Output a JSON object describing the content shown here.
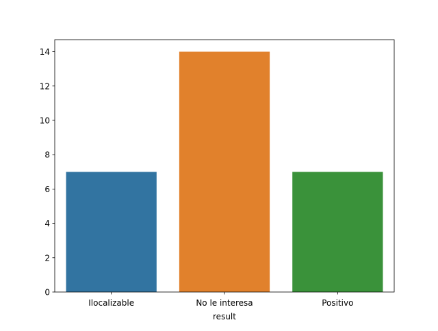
{
  "chart_data": {
    "type": "bar",
    "categories": [
      "Ilocalizable",
      "No le interesa",
      "Positivo"
    ],
    "values": [
      7,
      14,
      7
    ],
    "colors": [
      "#3274a1",
      "#e1812c",
      "#3a923a"
    ],
    "title": "",
    "xlabel": "result",
    "ylabel": "",
    "ylim": [
      0,
      14.7
    ],
    "yticks": [
      0,
      2,
      4,
      6,
      8,
      10,
      12,
      14
    ],
    "grid": false,
    "legend": "none"
  }
}
